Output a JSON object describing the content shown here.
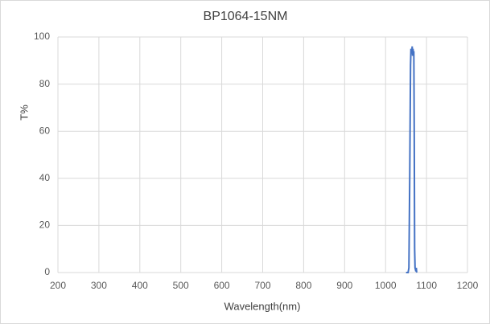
{
  "chart_data": {
    "type": "line",
    "title": "BP1064-15NM",
    "x_label": "Wavelength(nm)",
    "y_label": "T%",
    "x": [
      1050,
      1055,
      1057,
      1059,
      1061,
      1062,
      1064,
      1065,
      1066,
      1067,
      1068,
      1069,
      1070,
      1071,
      1072,
      1074,
      1075,
      1076
    ],
    "series": [
      {
        "name": "BP1064-15NM",
        "color": "#4472c4",
        "values": [
          0,
          0,
          2,
          40,
          88,
          95,
          93,
          96,
          92,
          95,
          93,
          94,
          60,
          10,
          2,
          0.5,
          2,
          0
        ]
      }
    ],
    "xlim": [
      200,
      1200
    ],
    "xticks": [
      200,
      300,
      400,
      500,
      600,
      700,
      800,
      900,
      1000,
      1100,
      1200
    ],
    "ylim": [
      0,
      100
    ],
    "yticks": [
      0,
      20,
      40,
      60,
      80,
      100
    ],
    "grid": true
  }
}
